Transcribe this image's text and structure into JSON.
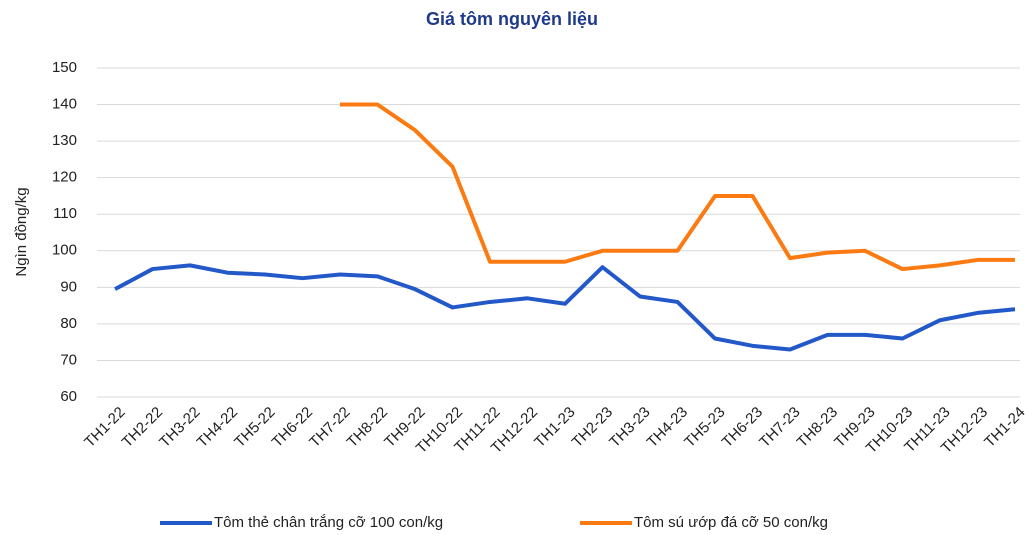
{
  "chart_data": {
    "type": "line",
    "title": "Giá tôm nguyên liệu",
    "y_label": "Ngìn đồng/kg",
    "categories": [
      "TH1-22",
      "TH2-22",
      "TH3-22",
      "TH4-22",
      "TH5-22",
      "TH6-22",
      "TH7-22",
      "TH8-22",
      "TH9-22",
      "TH10-22",
      "TH11-22",
      "TH12-22",
      "TH1-23",
      "TH2-23",
      "TH3-23",
      "TH4-23",
      "TH5-23",
      "TH6-23",
      "TH7-23",
      "TH8-23",
      "TH9-23",
      "TH10-23",
      "TH11-23",
      "TH12-23",
      "TH1-24"
    ],
    "series": [
      {
        "name": "Tôm thẻ chân trắng cỡ 100 con/kg",
        "color": "#2358c8",
        "values": [
          89.5,
          95,
          96,
          94,
          93.5,
          92.5,
          93.5,
          93,
          89.5,
          84.5,
          86,
          87,
          85.5,
          95.5,
          87.5,
          86,
          76,
          74,
          73,
          77,
          77,
          76,
          81,
          83,
          84
        ]
      },
      {
        "name": "Tôm sú ướp đá cỡ 50 con/kg",
        "color": "#fb7b12",
        "values": [
          null,
          null,
          null,
          null,
          null,
          null,
          140,
          140,
          133,
          123,
          97,
          97,
          97,
          100,
          100,
          100,
          115,
          115,
          98,
          99.5,
          100,
          95,
          96,
          97.5,
          97.5
        ]
      }
    ],
    "ylim": [
      60,
      150
    ],
    "yticks": [
      60,
      70,
      80,
      90,
      100,
      110,
      120,
      130,
      140,
      150
    ],
    "grid": true,
    "legend": "bottom"
  }
}
